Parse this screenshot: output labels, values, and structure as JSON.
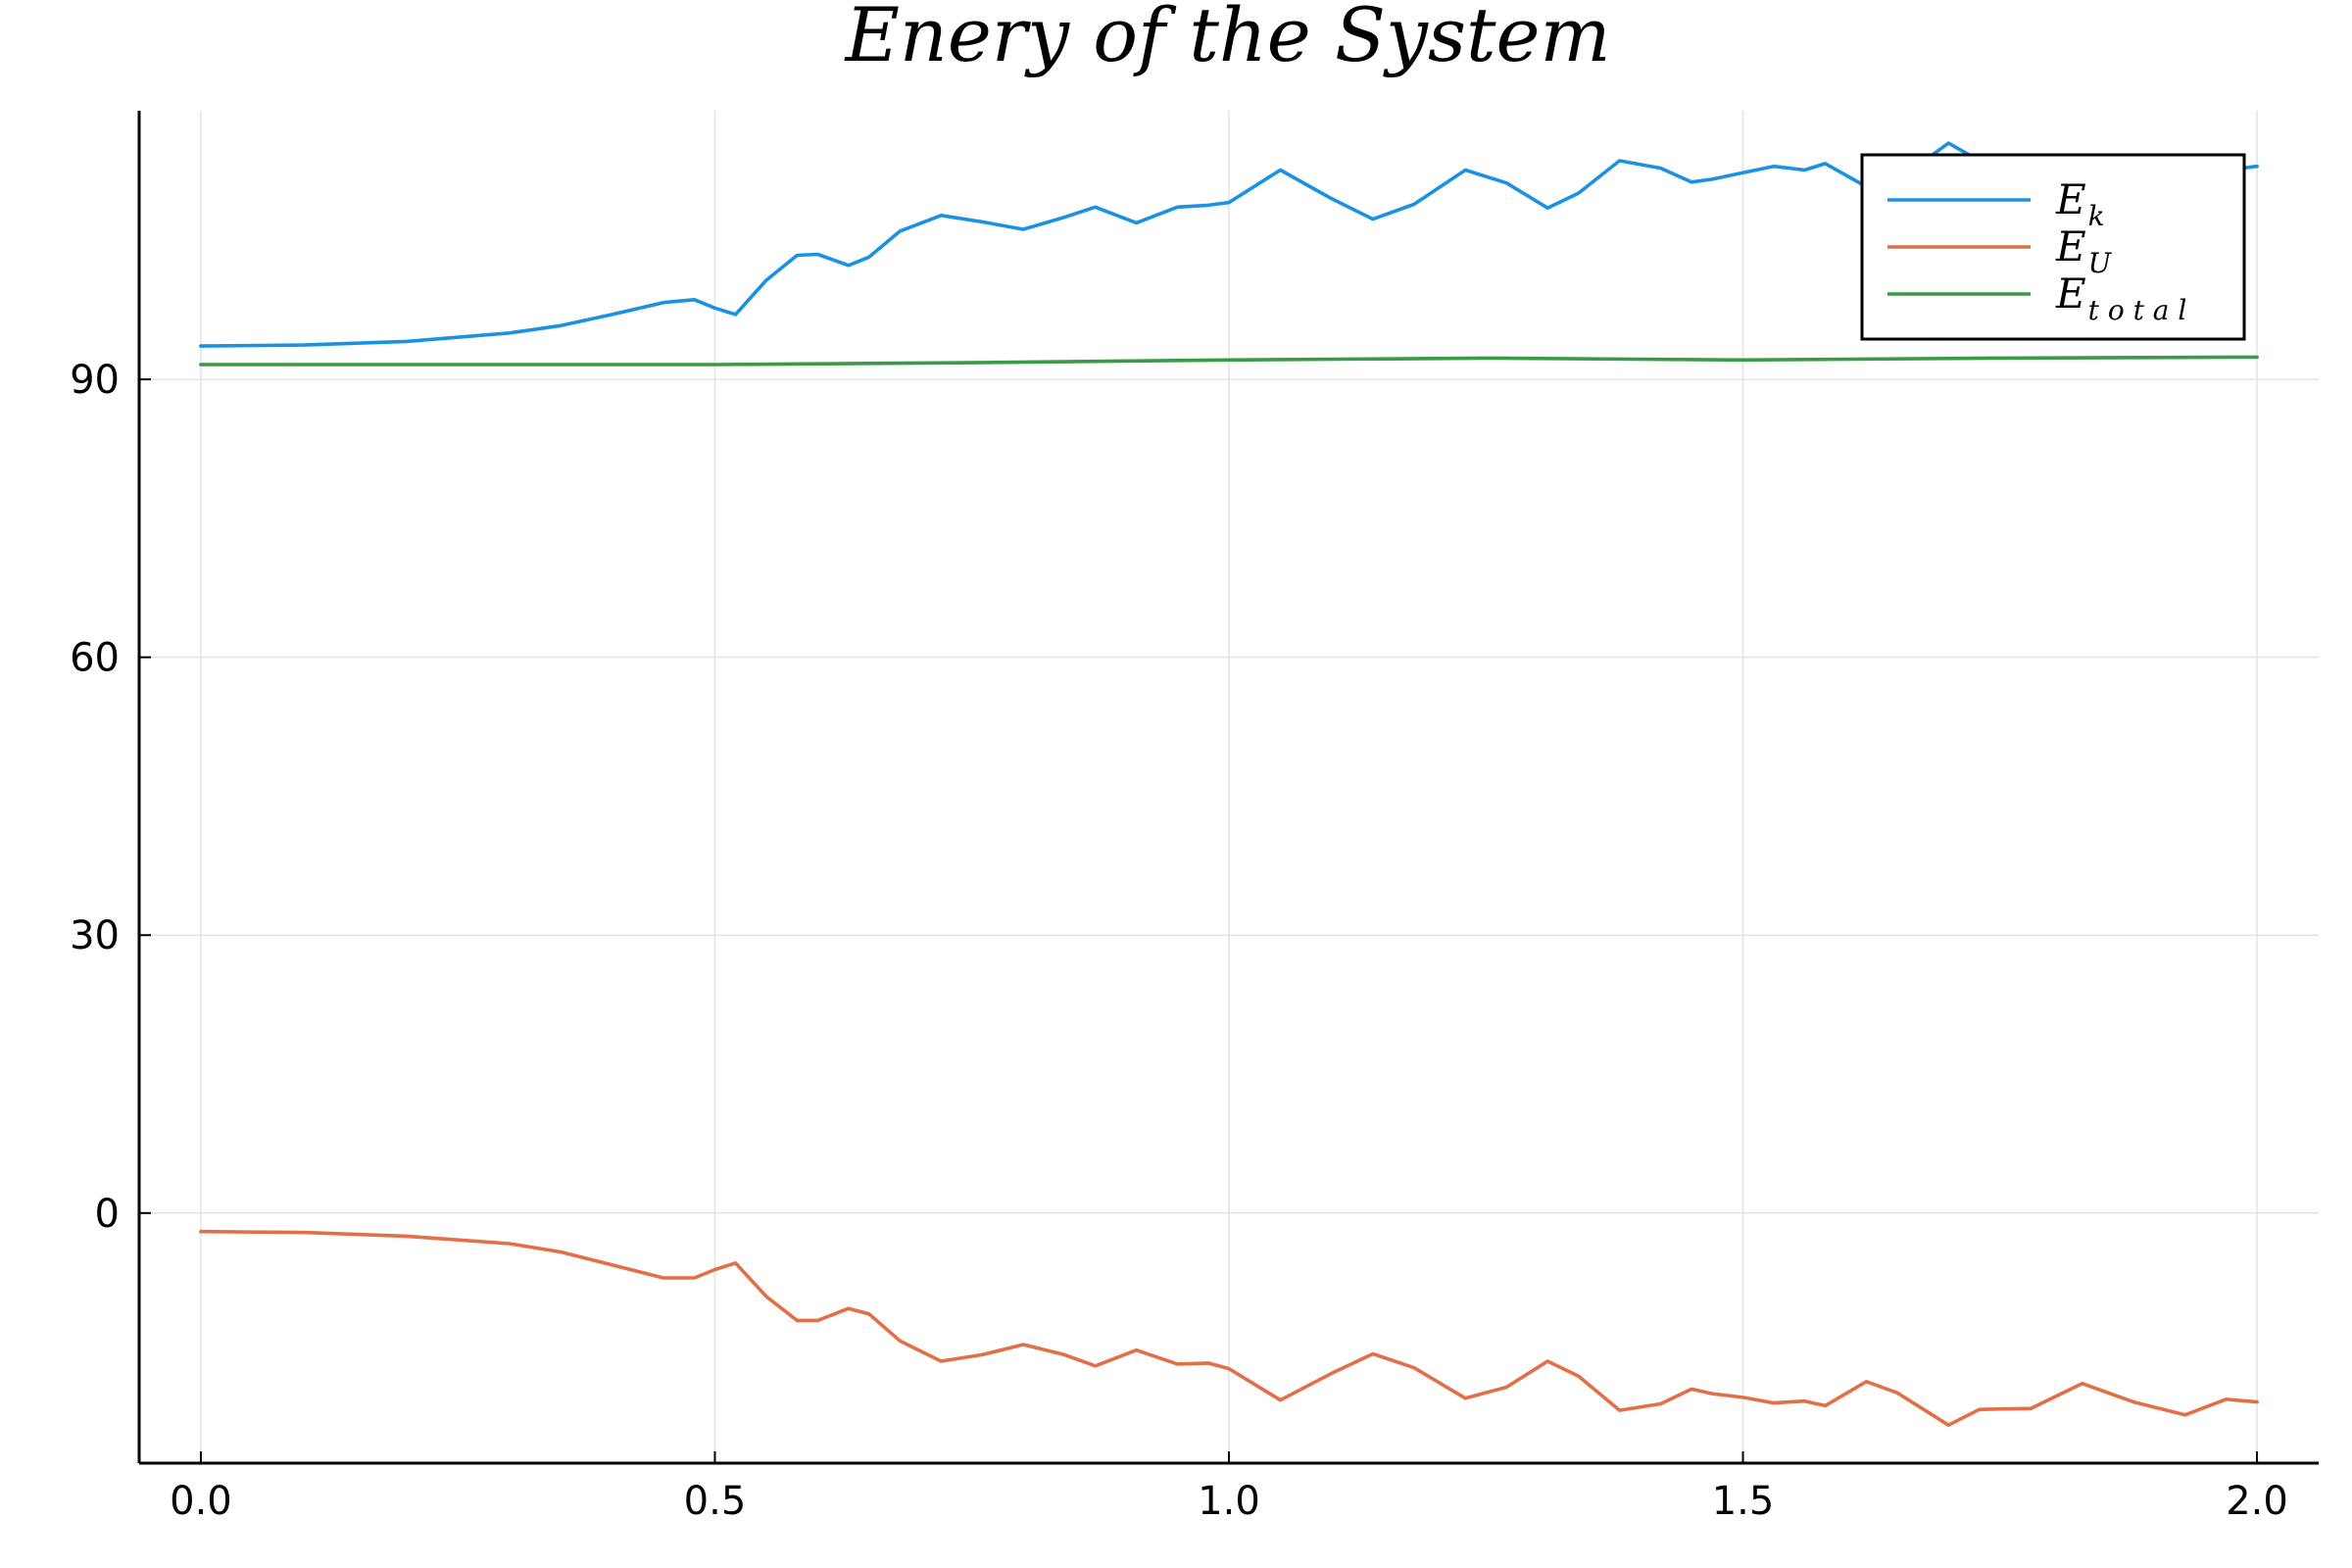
{
  "chart_data": {
    "type": "line",
    "title": "Enery of the System",
    "xlabel": "",
    "ylabel": "",
    "xlim": [
      -0.06,
      2.06
    ],
    "ylim": [
      -27,
      119
    ],
    "xticks": [
      0.0,
      0.5,
      1.0,
      1.5,
      2.0
    ],
    "xtick_labels": [
      "0.0",
      "0.5",
      "1.0",
      "1.5",
      "2.0"
    ],
    "yticks": [
      0,
      30,
      60,
      90
    ],
    "ytick_labels": [
      "0",
      "30",
      "60",
      "90"
    ],
    "grid": true,
    "legend_position": "top-right",
    "series": [
      {
        "name": "E_k",
        "label_main": "E",
        "label_sub": "k",
        "color": "#1a92e3",
        "x": [
          0.0,
          0.1,
          0.2,
          0.3,
          0.35,
          0.4,
          0.45,
          0.48,
          0.5,
          0.52,
          0.55,
          0.58,
          0.6,
          0.63,
          0.65,
          0.68,
          0.72,
          0.76,
          0.8,
          0.84,
          0.87,
          0.91,
          0.95,
          0.98,
          1.0,
          1.05,
          1.1,
          1.14,
          1.18,
          1.23,
          1.27,
          1.31,
          1.34,
          1.38,
          1.42,
          1.45,
          1.47,
          1.5,
          1.53,
          1.56,
          1.58,
          1.62,
          1.65,
          1.7,
          1.73,
          1.78,
          1.83,
          1.88,
          1.93,
          1.97,
          2.0
        ],
        "y": [
          93.6,
          93.7,
          94.1,
          95.0,
          95.8,
          97.0,
          98.3,
          98.6,
          97.7,
          97.0,
          100.7,
          103.4,
          103.5,
          102.3,
          103.2,
          106.0,
          107.7,
          107.0,
          106.2,
          107.5,
          108.6,
          106.9,
          108.6,
          108.8,
          109.1,
          112.6,
          109.5,
          107.3,
          108.9,
          112.6,
          111.2,
          108.5,
          110.1,
          113.6,
          112.8,
          111.3,
          111.6,
          112.3,
          113.0,
          112.6,
          113.3,
          110.8,
          111.5,
          115.5,
          113.6,
          112.0,
          111.4,
          112.4,
          112.0,
          112.6,
          113.0
        ]
      },
      {
        "name": "E_U",
        "label_main": "E",
        "label_sub": "U",
        "color": "#e26f46",
        "x": [
          0.0,
          0.1,
          0.2,
          0.3,
          0.35,
          0.4,
          0.45,
          0.48,
          0.5,
          0.52,
          0.55,
          0.58,
          0.6,
          0.63,
          0.65,
          0.68,
          0.72,
          0.76,
          0.8,
          0.84,
          0.87,
          0.91,
          0.95,
          0.98,
          1.0,
          1.05,
          1.1,
          1.14,
          1.18,
          1.23,
          1.27,
          1.31,
          1.34,
          1.38,
          1.42,
          1.45,
          1.47,
          1.5,
          1.53,
          1.56,
          1.58,
          1.62,
          1.65,
          1.7,
          1.73,
          1.78,
          1.83,
          1.88,
          1.93,
          1.97,
          2.0
        ],
        "y": [
          -2.0,
          -2.1,
          -2.5,
          -3.3,
          -4.2,
          -5.6,
          -7.0,
          -7.0,
          -6.1,
          -5.4,
          -9.0,
          -11.6,
          -11.6,
          -10.3,
          -10.9,
          -13.8,
          -16.0,
          -15.3,
          -14.2,
          -15.3,
          -16.5,
          -14.8,
          -16.3,
          -16.2,
          -16.8,
          -20.2,
          -17.3,
          -15.2,
          -16.7,
          -20.0,
          -18.8,
          -16.0,
          -17.6,
          -21.3,
          -20.6,
          -19.0,
          -19.5,
          -19.9,
          -20.5,
          -20.3,
          -20.8,
          -18.2,
          -19.4,
          -22.9,
          -21.2,
          -21.1,
          -18.4,
          -20.4,
          -21.8,
          -20.1,
          -20.4
        ]
      },
      {
        "name": "E_total",
        "label_main": "E",
        "label_sub": "t o t a l",
        "color": "#3a9a45",
        "x": [
          0.0,
          0.25,
          0.5,
          0.75,
          1.0,
          1.25,
          1.5,
          1.75,
          2.0
        ],
        "y": [
          91.6,
          91.6,
          91.6,
          91.8,
          92.1,
          92.3,
          92.1,
          92.3,
          92.4
        ]
      }
    ]
  }
}
